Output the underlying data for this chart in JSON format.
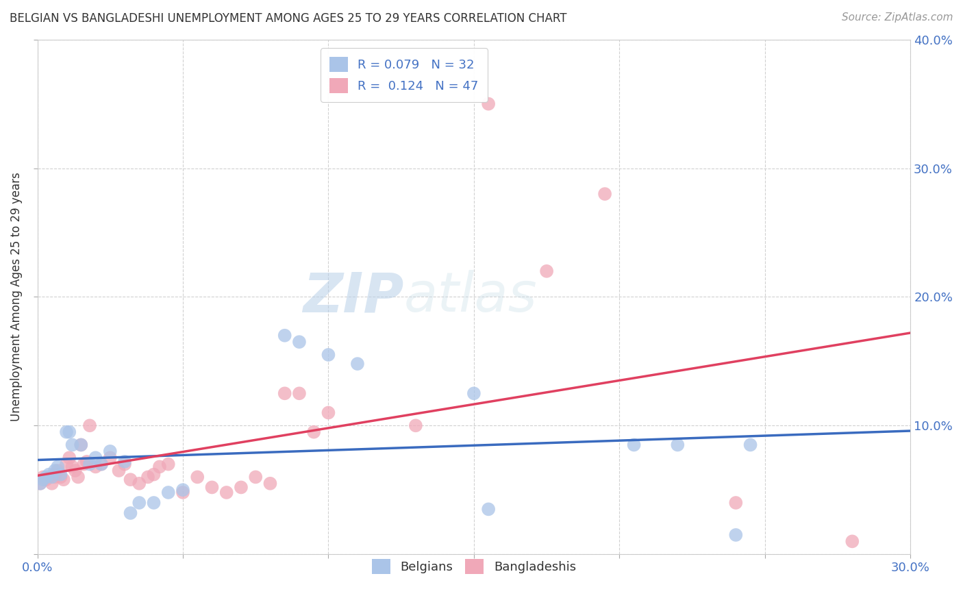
{
  "title": "BELGIAN VS BANGLADESHI UNEMPLOYMENT AMONG AGES 25 TO 29 YEARS CORRELATION CHART",
  "source": "Source: ZipAtlas.com",
  "ylabel": "Unemployment Among Ages 25 to 29 years",
  "xlim": [
    0.0,
    0.3
  ],
  "ylim": [
    0.0,
    0.4
  ],
  "xticks": [
    0.0,
    0.05,
    0.1,
    0.15,
    0.2,
    0.25,
    0.3
  ],
  "yticks": [
    0.0,
    0.1,
    0.2,
    0.3,
    0.4
  ],
  "belgian_color": "#aac4e8",
  "bangladeshi_color": "#f0a8b8",
  "trend_blue": "#3a6bbf",
  "trend_pink": "#e04060",
  "legend_text_color": "#4472c4",
  "R_belgian": 0.079,
  "N_belgian": 32,
  "R_bangladeshi": 0.124,
  "N_bangladeshi": 47,
  "belgians_x": [
    0.001,
    0.002,
    0.003,
    0.004,
    0.005,
    0.006,
    0.007,
    0.008,
    0.01,
    0.011,
    0.012,
    0.015,
    0.018,
    0.02,
    0.022,
    0.025,
    0.03,
    0.032,
    0.035,
    0.04,
    0.045,
    0.05,
    0.085,
    0.09,
    0.1,
    0.11,
    0.15,
    0.155,
    0.205,
    0.22,
    0.24,
    0.245
  ],
  "belgians_y": [
    0.055,
    0.058,
    0.06,
    0.062,
    0.06,
    0.065,
    0.068,
    0.062,
    0.095,
    0.095,
    0.085,
    0.085,
    0.07,
    0.075,
    0.07,
    0.08,
    0.072,
    0.032,
    0.04,
    0.04,
    0.048,
    0.05,
    0.17,
    0.165,
    0.155,
    0.148,
    0.125,
    0.035,
    0.085,
    0.085,
    0.015,
    0.085
  ],
  "bangladeshis_x": [
    0.001,
    0.002,
    0.003,
    0.004,
    0.005,
    0.006,
    0.006,
    0.007,
    0.008,
    0.009,
    0.01,
    0.011,
    0.012,
    0.013,
    0.014,
    0.015,
    0.016,
    0.017,
    0.018,
    0.02,
    0.022,
    0.025,
    0.028,
    0.03,
    0.032,
    0.035,
    0.038,
    0.04,
    0.042,
    0.045,
    0.05,
    0.055,
    0.06,
    0.065,
    0.07,
    0.075,
    0.08,
    0.085,
    0.09,
    0.095,
    0.1,
    0.13,
    0.155,
    0.175,
    0.195,
    0.24,
    0.28
  ],
  "bangladeshis_y": [
    0.055,
    0.06,
    0.058,
    0.06,
    0.055,
    0.06,
    0.062,
    0.065,
    0.06,
    0.058,
    0.07,
    0.075,
    0.068,
    0.065,
    0.06,
    0.085,
    0.07,
    0.072,
    0.1,
    0.068,
    0.07,
    0.075,
    0.065,
    0.07,
    0.058,
    0.055,
    0.06,
    0.062,
    0.068,
    0.07,
    0.048,
    0.06,
    0.052,
    0.048,
    0.052,
    0.06,
    0.055,
    0.125,
    0.125,
    0.095,
    0.11,
    0.1,
    0.35,
    0.22,
    0.28,
    0.04,
    0.01
  ],
  "watermark_zip": "ZIP",
  "watermark_atlas": "atlas",
  "background_color": "#ffffff"
}
